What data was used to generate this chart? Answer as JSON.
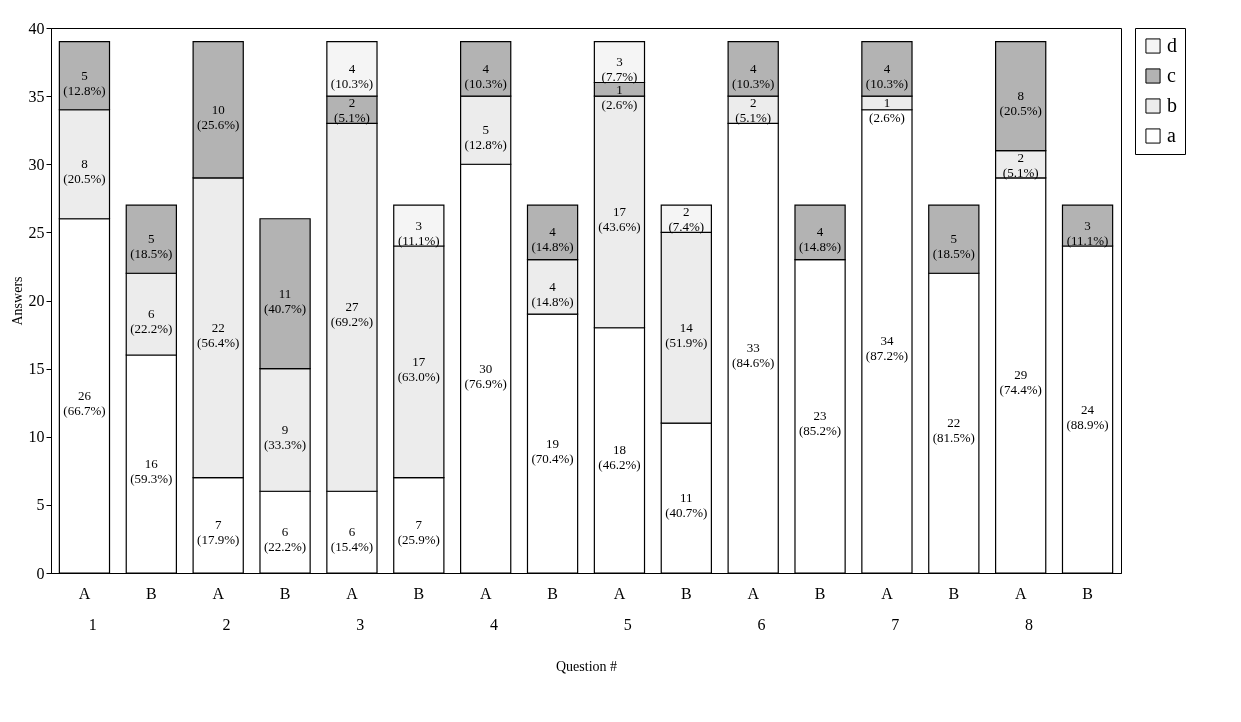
{
  "chart_data": {
    "type": "bar",
    "stacked": true,
    "xlabel": "Question #",
    "ylabel": "Answers",
    "ylim": [
      0,
      40
    ],
    "yticks": [
      0,
      5,
      10,
      15,
      20,
      25,
      30,
      35,
      40
    ],
    "grid": false,
    "legend": "right",
    "categories": [
      "A",
      "B",
      "A",
      "B",
      "A",
      "B",
      "A",
      "B",
      "A",
      "B",
      "A",
      "B",
      "A",
      "B",
      "A",
      "B"
    ],
    "annotations": [
      "1",
      "2",
      "3",
      "4",
      "5",
      "6",
      "7",
      "8"
    ],
    "series": [
      {
        "name": "a",
        "color": "#ffffff",
        "values": [
          26,
          16,
          7,
          6,
          6,
          7,
          30,
          19,
          18,
          11,
          33,
          23,
          34,
          22,
          29,
          24
        ],
        "value_labels": [
          "26 (66.7%)",
          "16 (59.3%)",
          "7 (17.9%)",
          "6 (22.2%)",
          "6 (15.4%)",
          "7 (25.9%)",
          "30 (76.9%)",
          "19 (70.4%)",
          "18 (46.2%)",
          "11 (40.7%)",
          "33 (84.6%)",
          "23 (85.2%)",
          "34 (87.2%)",
          "22 (81.5%)",
          "29 (74.4%)",
          "24 (88.9%)"
        ]
      },
      {
        "name": "b",
        "color": "#ececec",
        "values": [
          8,
          6,
          22,
          9,
          27,
          17,
          5,
          4,
          17,
          14,
          2,
          null,
          1,
          null,
          2,
          null
        ],
        "value_labels": [
          "8 (20.5%)",
          "6 (22.2%)",
          "22 (56.4%)",
          "9 (33.3%)",
          "27 (69.2%)",
          "17 (63.0%)",
          "5 (12.8%)",
          "4 (14.8%)",
          "17 (43.6%)",
          "14 (51.9%)",
          "2 (5.1%)",
          null,
          "1 (2.6%)",
          null,
          "2 (5.1%)",
          null
        ]
      },
      {
        "name": "c",
        "color": "#b3b3b3",
        "values": [
          5,
          5,
          10,
          11,
          2,
          null,
          4,
          4,
          1,
          null,
          4,
          4,
          4,
          5,
          8,
          3
        ],
        "value_labels": [
          "5 (12.8%)",
          "5 (18.5%)",
          "10 (25.6%)",
          "11 (40.7%)",
          "2 (5.1%)",
          null,
          "4 (10.3%)",
          "4 (14.8%)",
          "1 (2.6%)",
          null,
          "4 (10.3%)",
          "4 (14.8%)",
          "4 (10.3%)",
          "5 (18.5%)",
          "8 (20.5%)",
          "3 (11.1%)"
        ]
      },
      {
        "name": "d",
        "color": "#f5f5f5",
        "values": [
          null,
          null,
          null,
          null,
          4,
          3,
          null,
          null,
          3,
          2,
          null,
          null,
          null,
          null,
          null,
          null
        ],
        "value_labels": [
          null,
          null,
          null,
          null,
          "4 (10.3%)",
          "3 (11.1%)",
          null,
          null,
          "3 (7.7%)",
          "2 (7.4%)",
          null,
          null,
          null,
          null,
          null,
          null
        ]
      }
    ]
  }
}
